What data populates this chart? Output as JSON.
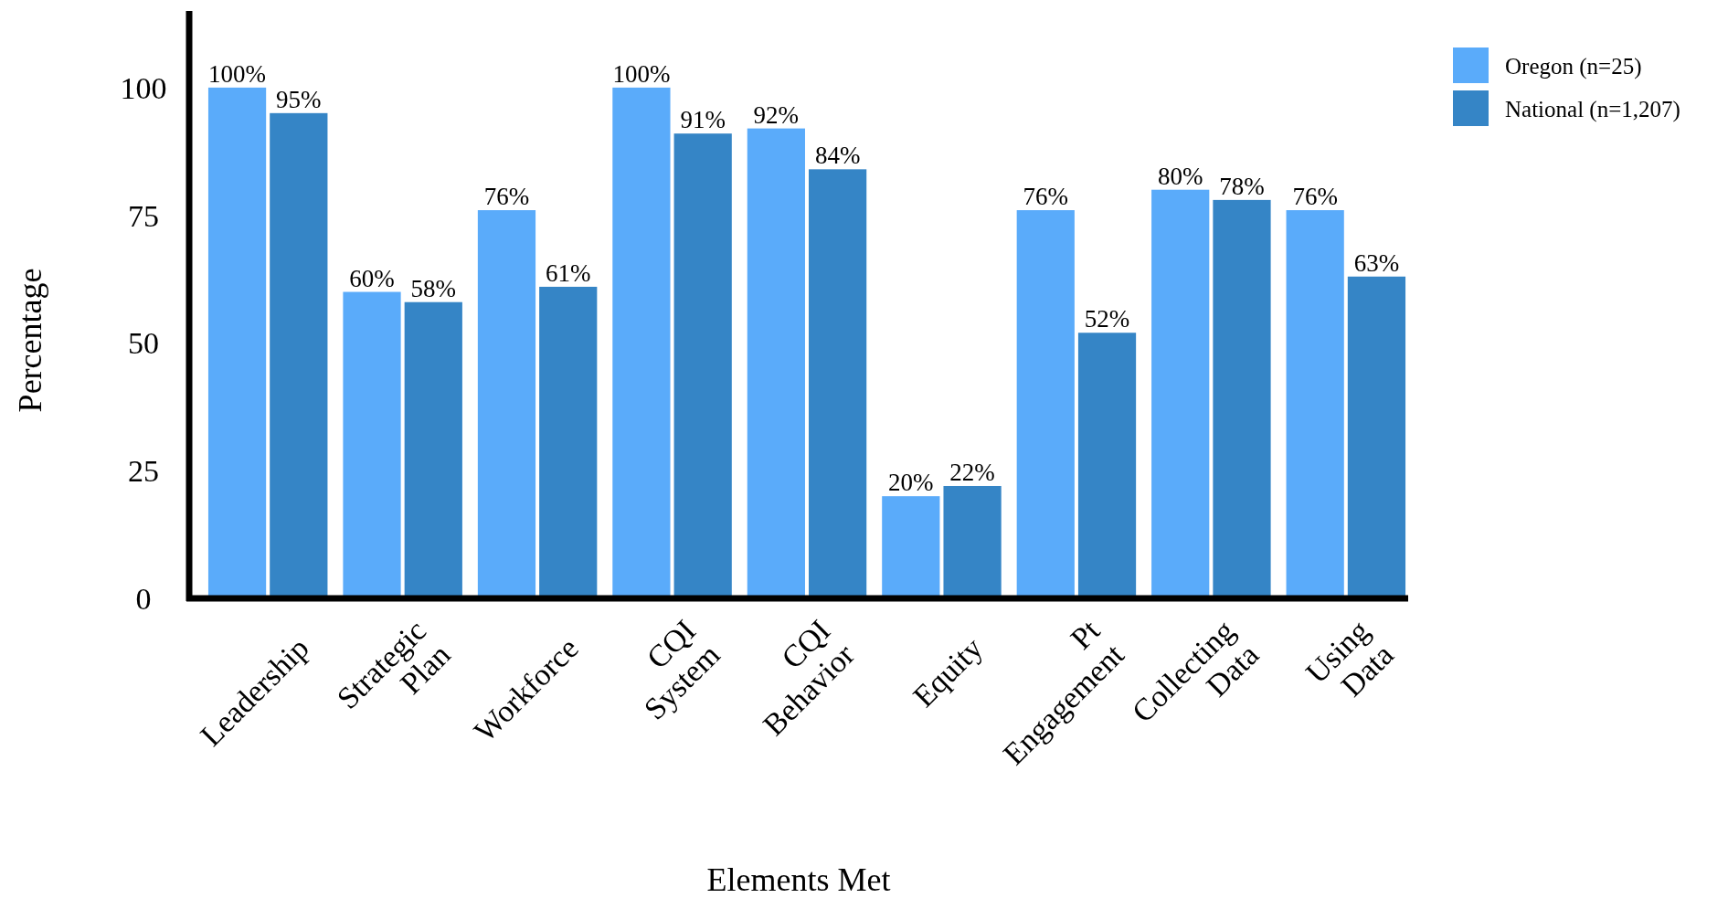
{
  "chart_data": {
    "type": "bar",
    "xlabel": "Elements Met",
    "ylabel": "Percentage",
    "categories": [
      "Leadership",
      "Strategic Plan",
      "Workforce",
      "CQI System",
      "CQI Behavior",
      "Equity",
      "Pt Engagement",
      "Collecting Data",
      "Using Data"
    ],
    "series": [
      {
        "name": "Oregon (n=25)",
        "color": "#5aabfa",
        "values": [
          100,
          60,
          76,
          100,
          92,
          20,
          76,
          80,
          76
        ],
        "value_labels": [
          "100%",
          "60%",
          "76%",
          "100%",
          "92%",
          "20%",
          "76%",
          "80%",
          "76%"
        ]
      },
      {
        "name": "National (n=1,207)",
        "color": "#3585c6",
        "values": [
          95,
          58,
          61,
          91,
          84,
          22,
          52,
          78,
          63
        ],
        "value_labels": [
          "95%",
          "58%",
          "61%",
          "91%",
          "84%",
          "22%",
          "52%",
          "78%",
          "63%"
        ]
      }
    ],
    "ylim": [
      0,
      115
    ],
    "yticks": [
      0,
      25,
      50,
      75,
      100
    ],
    "grid": false,
    "legend": "top right"
  }
}
